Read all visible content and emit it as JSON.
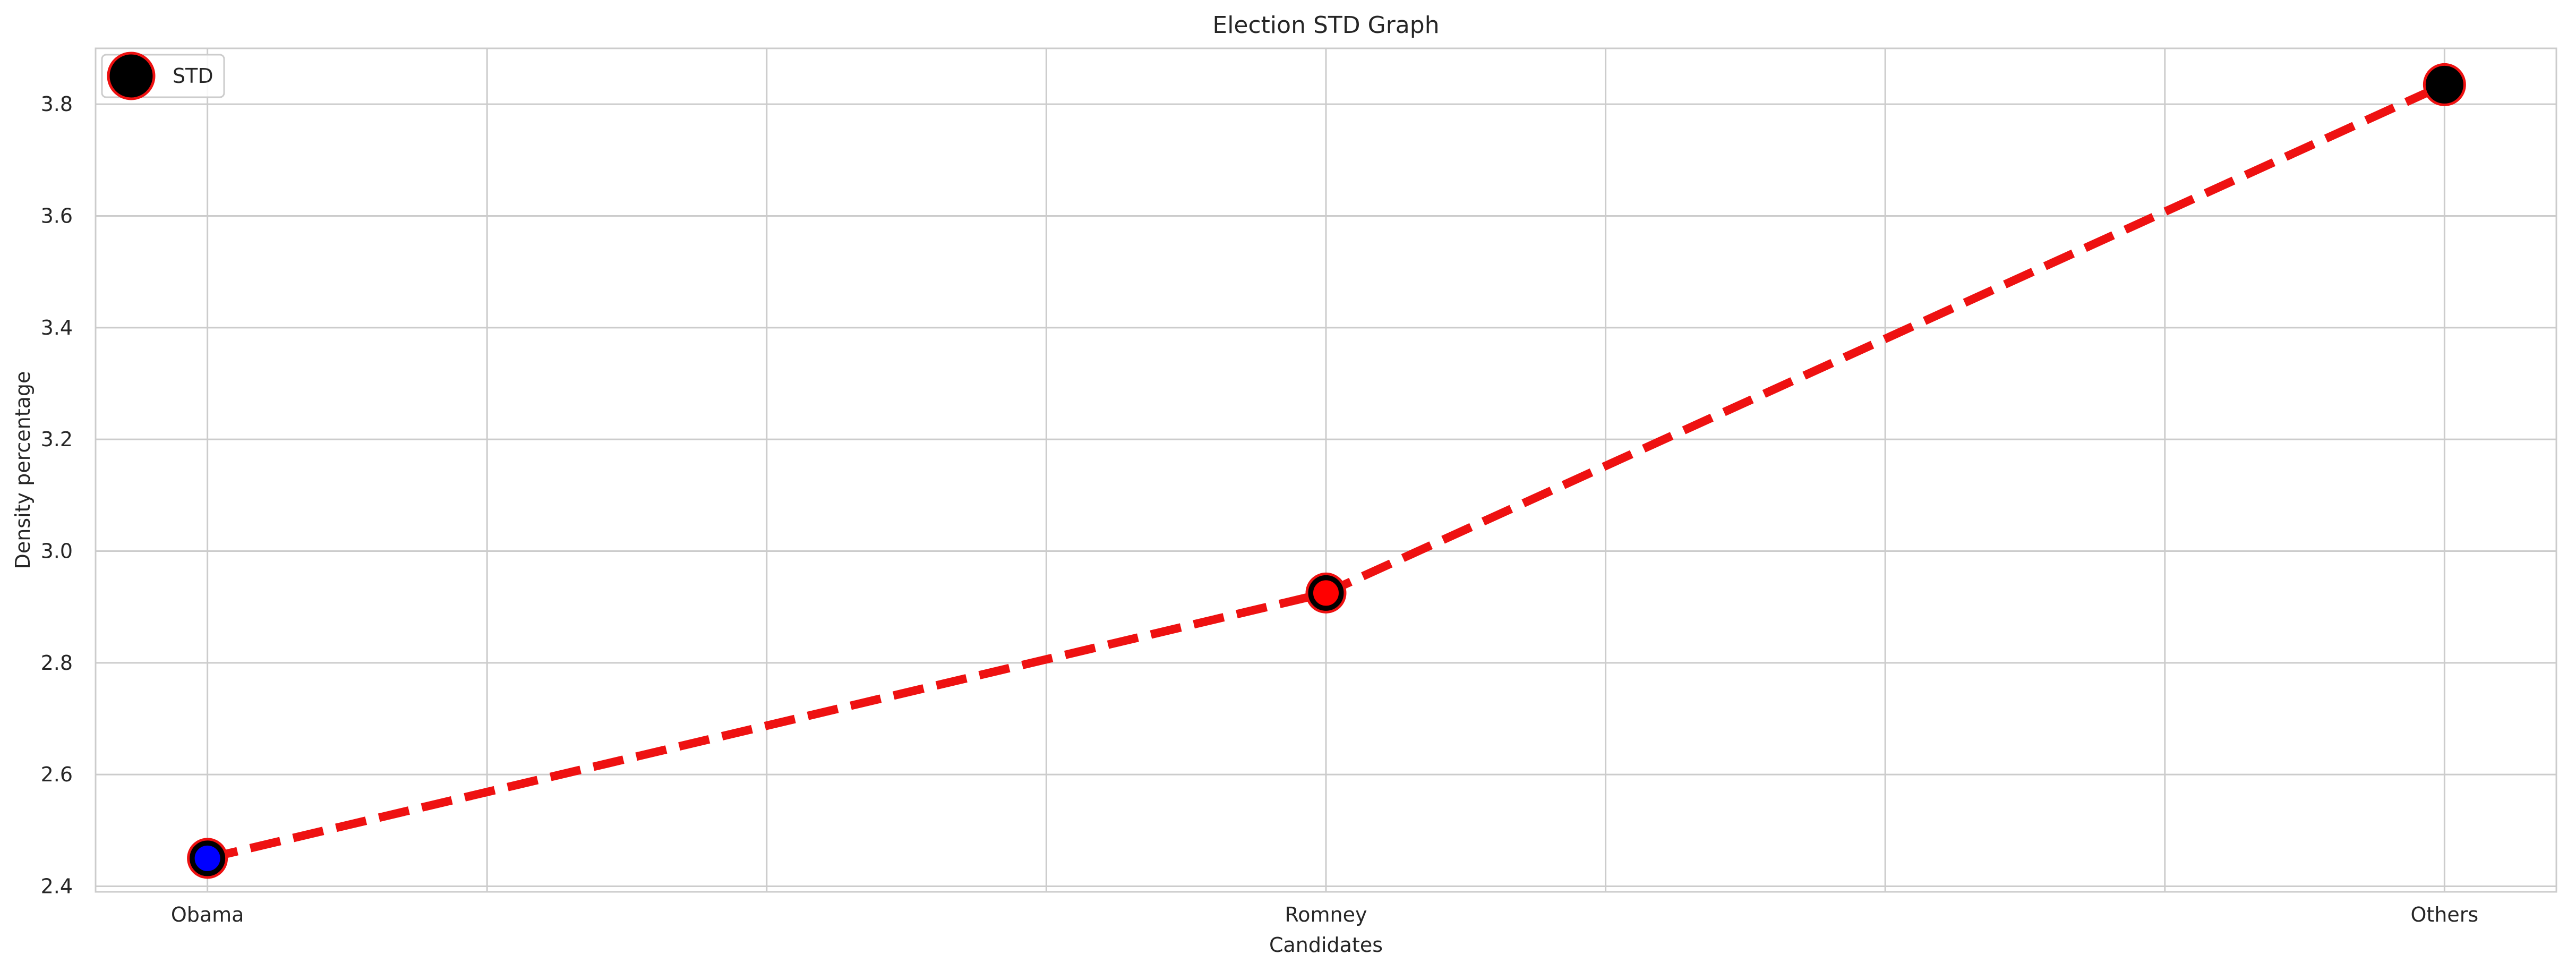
{
  "chart_data": {
    "type": "line",
    "title": "Election STD Graph",
    "xlabel": "Candidates",
    "ylabel": "Density percentage",
    "categories": [
      "Obama",
      "Romney",
      "Others"
    ],
    "x": [
      0,
      1,
      2
    ],
    "xlim": [
      -0.1,
      2.1
    ],
    "x_gridlines": [
      0,
      0.25,
      0.5,
      0.75,
      1,
      1.25,
      1.5,
      1.75,
      2
    ],
    "ylim": [
      2.39,
      3.9
    ],
    "yticks": [
      2.4,
      2.6,
      2.8,
      3.0,
      3.2,
      3.4,
      3.6,
      3.8
    ],
    "ytick_labels": [
      "2.4",
      "2.6",
      "2.8",
      "3.0",
      "3.2",
      "3.4",
      "3.6",
      "3.8"
    ],
    "grid": true,
    "legend": {
      "position": "top-left"
    },
    "series": [
      {
        "name": "STD",
        "values": [
          2.45,
          2.925,
          3.835
        ],
        "line_color": "#ee1111",
        "line_style": "dashed",
        "marker": "circle",
        "marker_fill": "#000000",
        "marker_edge": "#ee1111",
        "point_marker_fills": [
          "#0000ff",
          "#ff0000",
          "#000000"
        ],
        "point_marker_edges": [
          "#000000",
          "#000000",
          "#ee1111"
        ]
      }
    ]
  }
}
